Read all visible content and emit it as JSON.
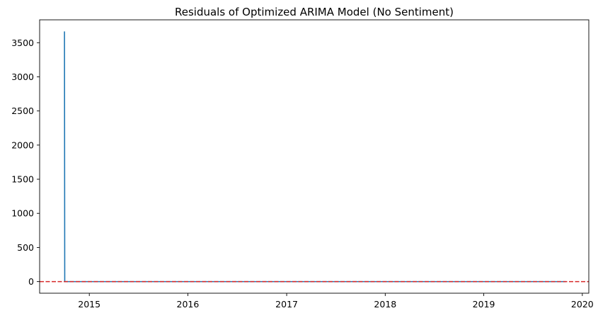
{
  "chart_data": {
    "type": "line",
    "title": "Residuals of Optimized ARIMA Model (No Sentiment)",
    "xlabel": "",
    "ylabel": "",
    "xlim": [
      "2014-07-01",
      "2020-01-25"
    ],
    "ylim": [
      -170,
      3835
    ],
    "x_ticks": [
      {
        "date": "2015-01-01",
        "label": "2015"
      },
      {
        "date": "2016-01-01",
        "label": "2016"
      },
      {
        "date": "2017-01-01",
        "label": "2017"
      },
      {
        "date": "2018-01-01",
        "label": "2018"
      },
      {
        "date": "2019-01-01",
        "label": "2019"
      },
      {
        "date": "2020-01-01",
        "label": "2020"
      }
    ],
    "y_ticks": [
      0,
      500,
      1000,
      1500,
      2000,
      2500,
      3000,
      3500
    ],
    "grid": false,
    "legend": "none",
    "series": [
      {
        "color": "#1f77b4",
        "points": [
          {
            "x": "2014-10-01",
            "y": 3665
          },
          {
            "x": "2014-10-02",
            "y": 0
          },
          {
            "x": "2015-06-01",
            "y": 0
          },
          {
            "x": "2016-01-01",
            "y": 0
          },
          {
            "x": "2016-09-01",
            "y": 0
          },
          {
            "x": "2017-06-01",
            "y": 0
          },
          {
            "x": "2018-03-01",
            "y": 0
          },
          {
            "x": "2018-12-01",
            "y": 0
          },
          {
            "x": "2019-07-01",
            "y": 0
          },
          {
            "x": "2019-11-01",
            "y": 0
          }
        ]
      }
    ],
    "reference_line": {
      "y": 0,
      "color": "#d62728",
      "style": "dashed"
    }
  }
}
